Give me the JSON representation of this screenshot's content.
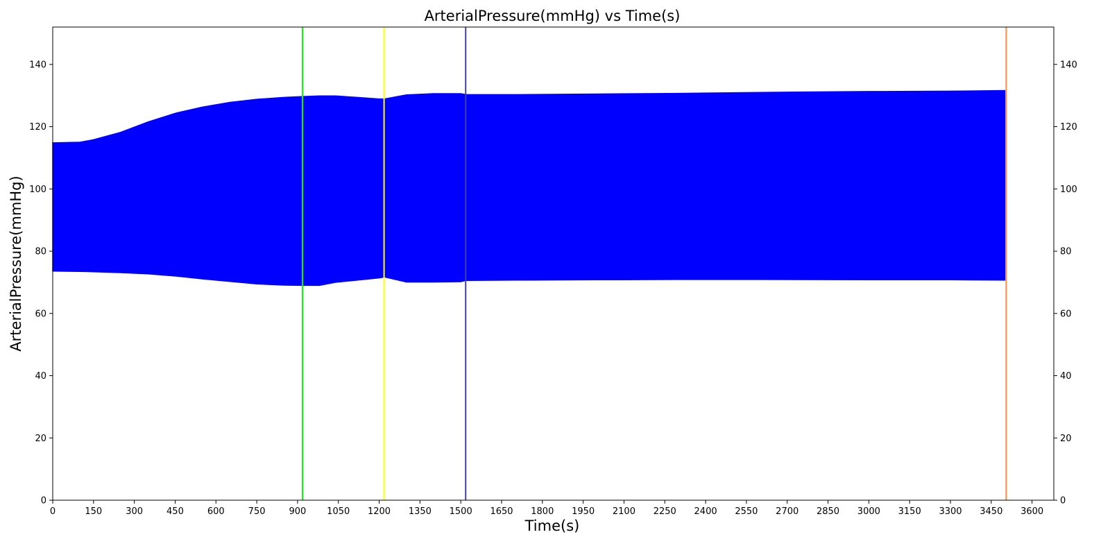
{
  "chart_data": {
    "type": "area",
    "title": "ArterialPressure(mmHg) vs Time(s)",
    "xlabel": "Time(s)",
    "ylabel": "ArterialPressure(mmHg)",
    "xlim": [
      0,
      3680
    ],
    "ylim": [
      0,
      152
    ],
    "x_ticks": [
      0,
      150,
      300,
      450,
      600,
      750,
      900,
      1050,
      1200,
      1350,
      1500,
      1650,
      1800,
      1950,
      2100,
      2250,
      2400,
      2550,
      2700,
      2850,
      3000,
      3150,
      3300,
      3450,
      3600
    ],
    "y_ticks": [
      0,
      20,
      40,
      60,
      80,
      100,
      120,
      140
    ],
    "right_axis_ticks": true,
    "grid": false,
    "legend": "none",
    "series": [
      {
        "color": "#0000ff",
        "x": [
          0,
          100,
          150,
          250,
          350,
          450,
          550,
          650,
          750,
          850,
          920,
          980,
          1040,
          1200,
          1220,
          1300,
          1400,
          1500,
          1520,
          1700,
          2000,
          2300,
          2600,
          3000,
          3300,
          3500
        ],
        "upper": [
          114.8,
          115.0,
          115.8,
          118.2,
          121.5,
          124.3,
          126.3,
          127.8,
          128.8,
          129.4,
          129.7,
          129.9,
          129.9,
          128.9,
          128.9,
          130.2,
          130.6,
          130.6,
          130.3,
          130.3,
          130.5,
          130.7,
          131.0,
          131.3,
          131.4,
          131.6
        ],
        "lower": [
          73.6,
          73.5,
          73.4,
          73.1,
          72.7,
          72.0,
          71.1,
          70.3,
          69.5,
          69.1,
          69.0,
          69.0,
          70.0,
          71.4,
          71.7,
          70.1,
          70.1,
          70.2,
          70.6,
          70.7,
          70.8,
          70.9,
          70.9,
          70.8,
          70.8,
          70.7
        ]
      }
    ],
    "vertical_lines": [
      {
        "x": 918,
        "color": "#00ff00"
      },
      {
        "x": 1218,
        "color": "#ffff00"
      },
      {
        "x": 1518,
        "color": "#4040a0"
      },
      {
        "x": 3505,
        "color": "#ff8c40"
      }
    ]
  }
}
